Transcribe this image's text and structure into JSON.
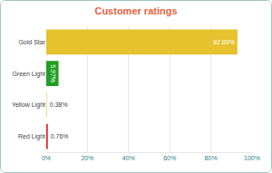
{
  "chart_data": {
    "type": "bar",
    "title": "Customer ratings",
    "orientation": "horizontal",
    "categories": [
      "Gold Star",
      "Green Light",
      "Yellow Light",
      "Red Light"
    ],
    "values": [
      92.89,
      5.97,
      0.38,
      0.76
    ],
    "value_labels": [
      "92.89%",
      "5.97%",
      "0.38%",
      "0.76%"
    ],
    "colors": [
      "#e5c22e",
      "#1f9e1f",
      "#e8e070",
      "#e0252b"
    ],
    "xlim": [
      0,
      100
    ],
    "xticks": [
      {
        "value": 0,
        "label": "0%"
      },
      {
        "value": 20,
        "label": "20%"
      },
      {
        "value": 40,
        "label": "40%"
      },
      {
        "value": 60,
        "label": "60%"
      },
      {
        "value": 80,
        "label": "80%"
      },
      {
        "value": 100,
        "label": "100%"
      }
    ],
    "grid": true,
    "data_labels": true
  }
}
